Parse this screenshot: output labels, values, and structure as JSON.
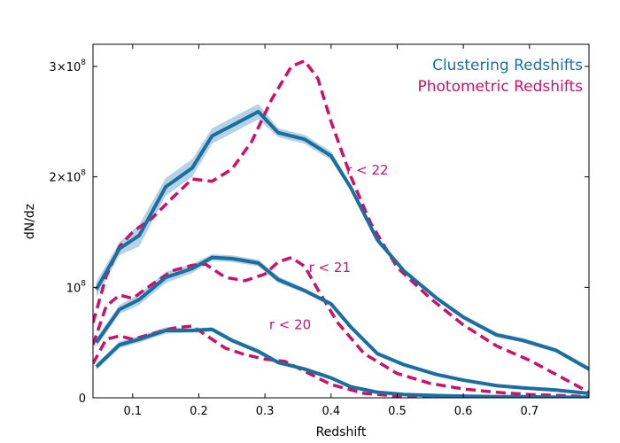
{
  "chart_data": {
    "type": "line",
    "title": "",
    "xlabel": "Redshift",
    "ylabel": "dN/dz",
    "xlim": [
      0.04,
      0.79
    ],
    "ylim": [
      0,
      320000000
    ],
    "grid": false,
    "legend_position": "top-right",
    "x_ticks": [
      0.1,
      0.2,
      0.3,
      0.4,
      0.5,
      0.6,
      0.7
    ],
    "x_tick_labels": [
      "0.1",
      "0.2",
      "0.3",
      "0.4",
      "0.5",
      "0.6",
      "0.7"
    ],
    "y_ticks": [
      0,
      100000000,
      200000000,
      300000000
    ],
    "y_tick_labels": [
      {
        "base": "0",
        "exp": ""
      },
      {
        "base": "10",
        "exp": "8"
      },
      {
        "base": "2×10",
        "exp": "8"
      },
      {
        "base": "3×10",
        "exp": "8"
      }
    ],
    "colors": {
      "clustering": "#1a6fa0",
      "band": "#9dc3dc",
      "photometric": "#cc1166"
    },
    "series": [
      {
        "name": "Clustering Redshifts",
        "style": "solid",
        "color": "#1a6fa0",
        "curves": [
          {
            "label": "r < 22",
            "x": [
              0.045,
              0.08,
              0.11,
              0.15,
              0.19,
              0.22,
              0.29,
              0.32,
              0.36,
              0.4,
              0.43,
              0.47,
              0.51,
              0.56,
              0.6,
              0.65,
              0.69,
              0.74,
              0.79
            ],
            "y": [
              98,
              135,
              147,
              191,
              208,
              237,
              259,
              240,
              234,
              219,
              190,
              143,
              115,
              90,
              73,
              57,
              52,
              43,
              26
            ],
            "err": [
              7,
              6,
              10,
              8,
              8,
              7,
              7,
              4,
              4,
              4,
              3,
              3,
              2,
              2,
              2,
              2,
              2,
              2,
              2
            ]
          },
          {
            "label": "r < 21",
            "x": [
              0.045,
              0.08,
              0.11,
              0.15,
              0.19,
              0.22,
              0.25,
              0.29,
              0.32,
              0.36,
              0.4,
              0.43,
              0.47,
              0.51,
              0.56,
              0.6,
              0.65,
              0.69,
              0.74,
              0.79
            ],
            "y": [
              50,
              80,
              89,
              109,
              117,
              127,
              126,
              122,
              107,
              97,
              85,
              64,
              40,
              30,
              21,
              16,
              11,
              9,
              7,
              4
            ],
            "err": [
              4,
              4,
              5,
              5,
              4,
              3,
              3,
              3,
              3,
              2,
              2,
              2,
              2,
              1,
              1,
              1,
              1,
              1,
              1,
              1
            ]
          },
          {
            "label": "r < 20",
            "x": [
              0.045,
              0.08,
              0.11,
              0.15,
              0.19,
              0.22,
              0.25,
              0.29,
              0.32,
              0.36,
              0.4,
              0.43,
              0.47,
              0.51,
              0.56,
              0.6,
              0.65,
              0.69,
              0.74,
              0.79
            ],
            "y": [
              28,
              48,
              53,
              61,
              61,
              62,
              52,
              42,
              32,
              26,
              18,
              10,
              5,
              3,
              2,
              1.5,
              1,
              1,
              0.5,
              0.5
            ],
            "err": [
              3,
              3,
              3,
              3,
              2,
              2,
              2,
              2,
              2,
              1,
              1,
              1,
              1,
              0.5,
              0.5,
              0.5,
              0.5,
              0.5,
              0.5,
              0.5
            ]
          }
        ]
      },
      {
        "name": "Photometric Redshifts",
        "style": "dashed",
        "color": "#cc1166",
        "curves": [
          {
            "label": "r < 22",
            "x": [
              0.04,
              0.06,
              0.08,
              0.1,
              0.13,
              0.16,
              0.19,
              0.22,
              0.25,
              0.28,
              0.31,
              0.34,
              0.36,
              0.38,
              0.4,
              0.43,
              0.46,
              0.5,
              0.55,
              0.6,
              0.65,
              0.7,
              0.75,
              0.79
            ],
            "y": [
              68,
              110,
              137,
              150,
              163,
              181,
              198,
              196,
              207,
              232,
              270,
              300,
              305,
              289,
              250,
              200,
              158,
              118,
              90,
              66,
              47,
              34,
              18,
              5
            ]
          },
          {
            "label": "r < 21",
            "x": [
              0.04,
              0.06,
              0.08,
              0.1,
              0.13,
              0.16,
              0.19,
              0.21,
              0.24,
              0.27,
              0.3,
              0.32,
              0.34,
              0.36,
              0.38,
              0.41,
              0.45,
              0.5,
              0.55,
              0.6,
              0.65,
              0.7,
              0.75,
              0.79
            ],
            "y": [
              48,
              83,
              93,
              90,
              103,
              115,
              120,
              121,
              109,
              106,
              112,
              123,
              127,
              119,
              98,
              68,
              40,
              22,
              13,
              8,
              5,
              3,
              2,
              1
            ]
          },
          {
            "label": "r < 20",
            "x": [
              0.04,
              0.06,
              0.08,
              0.1,
              0.13,
              0.16,
              0.19,
              0.21,
              0.24,
              0.27,
              0.3,
              0.33,
              0.36,
              0.4,
              0.45,
              0.5,
              0.55,
              0.6,
              0.65,
              0.7,
              0.75,
              0.79
            ],
            "y": [
              31,
              53,
              56,
              53,
              58,
              63,
              65,
              57,
              45,
              39,
              35,
              33,
              24,
              12,
              4,
              1.5,
              1,
              0.5,
              0.5,
              0.5,
              0.5,
              0.5
            ]
          }
        ]
      }
    ],
    "y_values_unit": "1e6",
    "annotations": [
      {
        "text": "r < 22",
        "x": 0.455,
        "y": 202
      },
      {
        "text": "r < 21",
        "x": 0.398,
        "y": 114
      },
      {
        "text": "r < 20",
        "x": 0.338,
        "y": 62
      }
    ]
  }
}
